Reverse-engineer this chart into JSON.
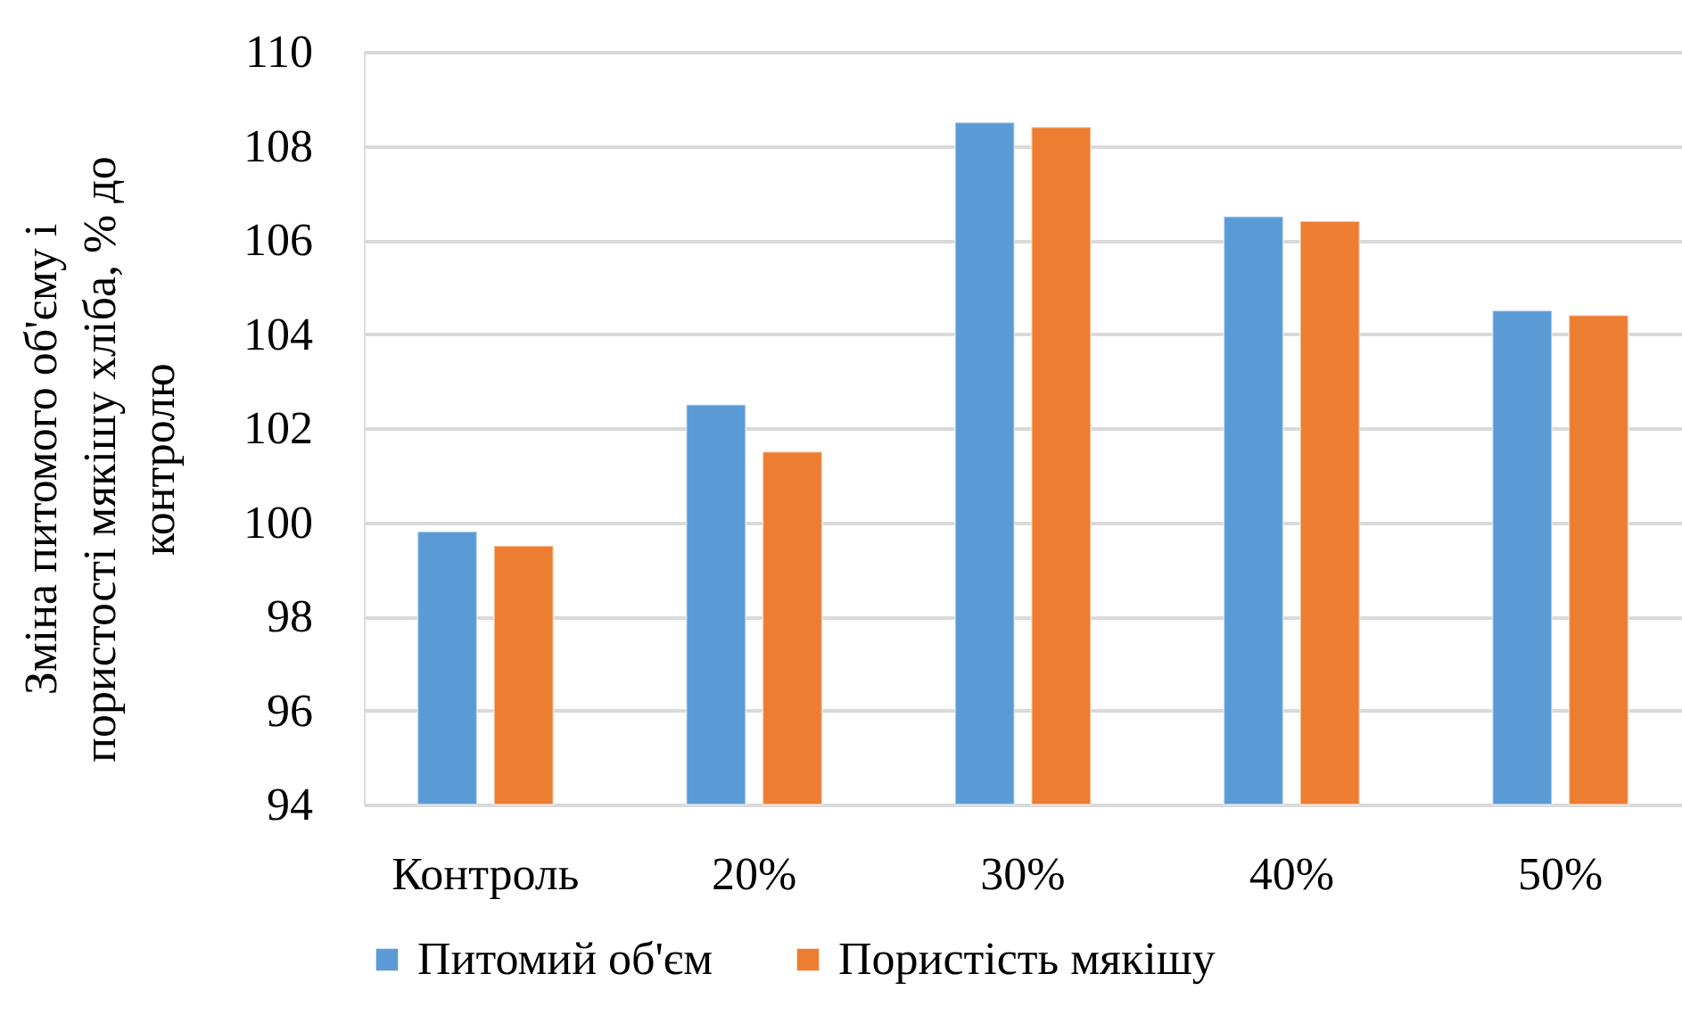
{
  "chart_data": {
    "type": "bar",
    "ylabel": "Зміна питомого об'єму і пористості мякішу хліба, % до контролю",
    "categories": [
      "Контроль",
      "20%",
      "30%",
      "40%",
      "50%"
    ],
    "series": [
      {
        "name": "Питомий об'єм",
        "color": "#5b9bd5",
        "values": [
          99.8,
          102.5,
          108.5,
          106.5,
          104.5
        ]
      },
      {
        "name": "Пористість мякішу",
        "color": "#ed7d31",
        "values": [
          99.5,
          101.5,
          108.4,
          106.4,
          104.4
        ]
      }
    ],
    "ylim": [
      94,
      110
    ],
    "yticks": [
      94,
      96,
      98,
      100,
      102,
      104,
      106,
      108,
      110
    ],
    "grid": "y",
    "legend": "bottom"
  }
}
